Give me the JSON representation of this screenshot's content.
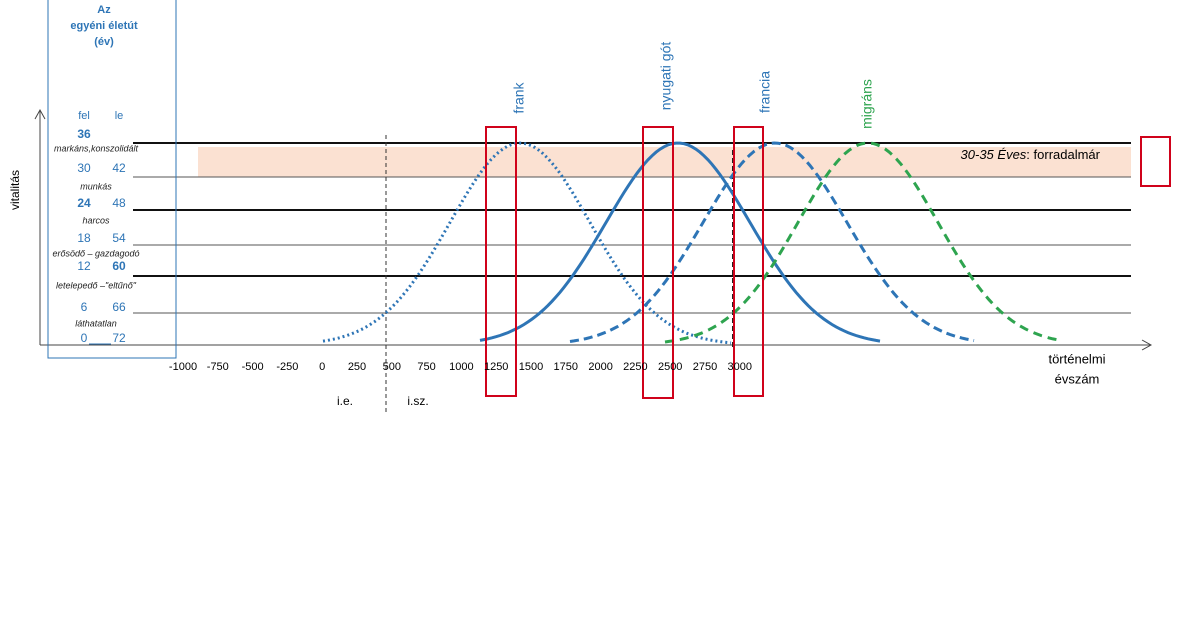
{
  "panel": {
    "title": [
      "Az",
      "egyéni életút",
      "(év)"
    ],
    "col_up": "fel",
    "col_down": "le",
    "ages": [
      {
        "fel": 36
      },
      {
        "fel": 30,
        "le": 42
      },
      {
        "fel": 24,
        "le": 48
      },
      {
        "fel": 18,
        "le": 54
      },
      {
        "fel": 12,
        "le": 60
      },
      {
        "fel": 6,
        "le": 66
      },
      {
        "fel": 0,
        "le": 72
      }
    ],
    "stages": [
      "markáns,konszolidált",
      "munkás",
      "harcos",
      "erősödő – gazdagodó",
      "letelepedő –\"eltűnő\"",
      "láthatatlan"
    ]
  },
  "y_axis_label": "vitalitás",
  "x_axis_label": [
    "történelmi",
    "évszám"
  ],
  "x_ticks": [
    "-1000",
    "-750",
    "-500",
    "-250",
    "0",
    "250",
    "500",
    "750",
    "1000",
    "1250",
    "1500",
    "1750",
    "2000",
    "2250",
    "2500",
    "2750",
    "3000"
  ],
  "era_labels": [
    "i.e.",
    "i.sz."
  ],
  "band": {
    "age": "30-35 Éves",
    "text": ": forradalmár"
  },
  "curves": [
    "frank",
    "nyugati gót",
    "francia",
    "migráns"
  ]
}
